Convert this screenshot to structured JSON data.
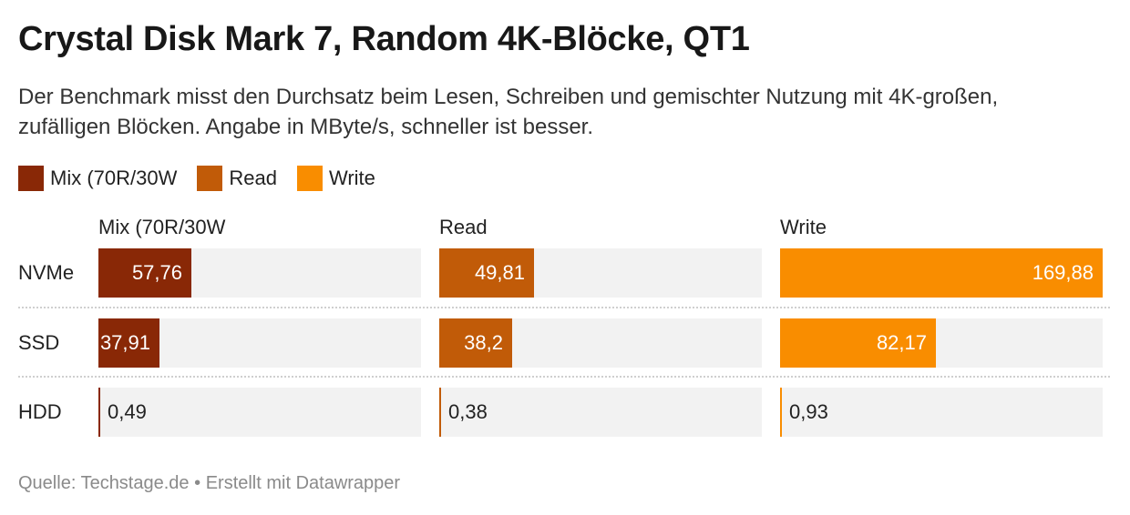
{
  "title": "Crystal Disk Mark 7, Random 4K-Blöcke, QT1",
  "subtitle": "Der Benchmark misst den Durchsatz beim Lesen, Schreiben und gemischter Nutzung mit 4K-großen, zufälligen Blöcken. Angabe in MByte/s, schneller ist besser.",
  "footer": {
    "source": "Quelle: Techstage.de",
    "separator": "•",
    "credit": "Erstellt mit Datawrapper"
  },
  "chart_data": {
    "type": "bar",
    "orientation": "horizontal",
    "layout": "small-multiples",
    "title": "Crystal Disk Mark 7, Random 4K-Blöcke, QT1",
    "subtitle": "Der Benchmark misst den Durchsatz beim Lesen, Schreiben und gemischter Nutzung mit 4K-großen, zufälligen Blöcken. Angabe in MByte/s, schneller ist besser.",
    "unit": "MByte/s",
    "categories": [
      "NVMe",
      "SSD",
      "HDD"
    ],
    "legend_position": "top-left",
    "grid": false,
    "series": [
      {
        "name": "Mix (70R/30W",
        "color": "#892806",
        "values": [
          57.76,
          37.91,
          0.49
        ],
        "labels": [
          "57,76",
          "37,91",
          "0,49"
        ],
        "xlim": [
          0,
          200
        ]
      },
      {
        "name": "Read",
        "color": "#c15b08",
        "values": [
          49.81,
          38.2,
          0.38
        ],
        "labels": [
          "49,81",
          "38,2",
          "0,38"
        ],
        "xlim": [
          0,
          170
        ]
      },
      {
        "name": "Write",
        "color": "#f98d00",
        "values": [
          169.88,
          82.17,
          0.93
        ],
        "labels": [
          "169,88",
          "82,17",
          "0,93"
        ],
        "xlim": [
          0,
          169.88
        ]
      }
    ]
  }
}
